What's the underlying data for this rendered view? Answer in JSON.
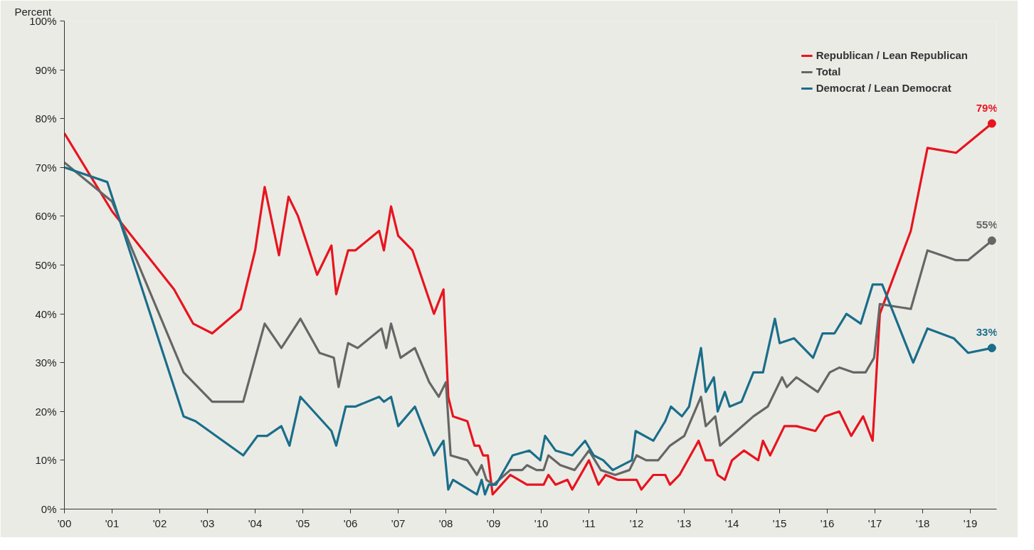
{
  "chart_data": {
    "type": "line",
    "ylabel": "Percent",
    "xlim": [
      2000,
      2019.55
    ],
    "ylim": [
      0,
      100
    ],
    "xticks": [
      {
        "value": 2000,
        "label": "'00"
      },
      {
        "value": 2001,
        "label": "'01"
      },
      {
        "value": 2002,
        "label": "'02"
      },
      {
        "value": 2003,
        "label": "'03"
      },
      {
        "value": 2004,
        "label": "'04"
      },
      {
        "value": 2005,
        "label": "'05"
      },
      {
        "value": 2006,
        "label": "'06"
      },
      {
        "value": 2007,
        "label": "'07"
      },
      {
        "value": 2008,
        "label": "'08"
      },
      {
        "value": 2009,
        "label": "'09"
      },
      {
        "value": 2010,
        "label": "'10"
      },
      {
        "value": 2011,
        "label": "'11"
      },
      {
        "value": 2012,
        "label": "'12"
      },
      {
        "value": 2013,
        "label": "'13"
      },
      {
        "value": 2014,
        "label": "'14"
      },
      {
        "value": 2015,
        "label": "'15"
      },
      {
        "value": 2016,
        "label": "'16"
      },
      {
        "value": 2017,
        "label": "'17"
      },
      {
        "value": 2018,
        "label": "'18"
      },
      {
        "value": 2019,
        "label": "'19"
      }
    ],
    "yticks": [
      {
        "value": 0,
        "label": "0%"
      },
      {
        "value": 10,
        "label": "10%"
      },
      {
        "value": 20,
        "label": "20%"
      },
      {
        "value": 30,
        "label": "30%"
      },
      {
        "value": 40,
        "label": "40%"
      },
      {
        "value": 50,
        "label": "50%"
      },
      {
        "value": 60,
        "label": "60%"
      },
      {
        "value": 70,
        "label": "70%"
      },
      {
        "value": 80,
        "label": "80%"
      },
      {
        "value": 90,
        "label": "90%"
      },
      {
        "value": 100,
        "label": "100%"
      }
    ],
    "grid": false,
    "legend": "top right",
    "line_style": "solid",
    "series": [
      {
        "name": "Republican / Lean Republican",
        "color": "#e8141e",
        "x": [
          2000.0,
          2001.0,
          2002.3,
          2002.7,
          2003.1,
          2003.7,
          2004.0,
          2004.2,
          2004.5,
          2004.7,
          2004.9,
          2005.3,
          2005.6,
          2005.7,
          2005.95,
          2006.1,
          2006.6,
          2006.7,
          2006.85,
          2007.0,
          2007.3,
          2007.75,
          2007.95,
          2008.05,
          2008.15,
          2008.45,
          2008.6,
          2008.7,
          2008.78,
          2008.88,
          2008.98,
          2009.35,
          2009.7,
          2010.05,
          2010.15,
          2010.3,
          2010.55,
          2010.65,
          2011.0,
          2011.2,
          2011.35,
          2011.6,
          2012.0,
          2012.1,
          2012.35,
          2012.6,
          2012.7,
          2012.9,
          2013.3,
          2013.45,
          2013.6,
          2013.7,
          2013.85,
          2014.0,
          2014.25,
          2014.55,
          2014.65,
          2014.8,
          2015.1,
          2015.35,
          2015.75,
          2015.95,
          2016.25,
          2016.5,
          2016.75,
          2016.95,
          2017.1,
          2017.75,
          2018.1,
          2018.7,
          2019.45
        ],
        "values": [
          77,
          61,
          45,
          38,
          36,
          41,
          53,
          66,
          52,
          64,
          60,
          48,
          54,
          44,
          53,
          53,
          57,
          53,
          62,
          56,
          53,
          40,
          45,
          23,
          19,
          18,
          13,
          13,
          11,
          11,
          3,
          7,
          5,
          5,
          7,
          5,
          6,
          4,
          10,
          5,
          7,
          6,
          6,
          4,
          7,
          7,
          5,
          7,
          14,
          10,
          10,
          7,
          6,
          10,
          12,
          10,
          14,
          11,
          17,
          17,
          16,
          19,
          20,
          15,
          19,
          14,
          40,
          57,
          74,
          73,
          79
        ],
        "value_labels": [
          null,
          null,
          null,
          null,
          null,
          null,
          null,
          null,
          null,
          null,
          null,
          null,
          null,
          null,
          null,
          null,
          null,
          null,
          null,
          null,
          null,
          null,
          null,
          null,
          null,
          null,
          null,
          null,
          null,
          null,
          null,
          null,
          null,
          null,
          null,
          null,
          null,
          null,
          null,
          null,
          null,
          null,
          null,
          null,
          null,
          null,
          null,
          null,
          null,
          null,
          null,
          null,
          null,
          null,
          null,
          null,
          null,
          null,
          null,
          null,
          null,
          null,
          null,
          null,
          null,
          null,
          null,
          null,
          null,
          null,
          "79%"
        ]
      },
      {
        "name": "Total",
        "color": "#666666",
        "x": [
          2000.0,
          2001.0,
          2002.5,
          2003.1,
          2003.75,
          2004.2,
          2004.55,
          2004.95,
          2005.35,
          2005.65,
          2005.75,
          2005.95,
          2006.15,
          2006.65,
          2006.75,
          2006.85,
          2007.05,
          2007.35,
          2007.65,
          2007.85,
          2008.0,
          2008.1,
          2008.45,
          2008.65,
          2008.75,
          2008.85,
          2009.0,
          2009.35,
          2009.6,
          2009.7,
          2009.9,
          2010.05,
          2010.15,
          2010.4,
          2010.7,
          2011.0,
          2011.25,
          2011.55,
          2011.85,
          2012.0,
          2012.2,
          2012.45,
          2012.7,
          2013.0,
          2013.35,
          2013.45,
          2013.65,
          2013.75,
          2014.1,
          2014.45,
          2014.75,
          2015.05,
          2015.15,
          2015.35,
          2015.8,
          2016.05,
          2016.25,
          2016.55,
          2016.8,
          2016.98,
          2017.1,
          2017.75,
          2018.1,
          2018.7,
          2018.95,
          2019.45
        ],
        "values": [
          71,
          63,
          28,
          22,
          22,
          38,
          33,
          39,
          32,
          31,
          25,
          34,
          33,
          37,
          33,
          38,
          31,
          33,
          26,
          23,
          26,
          11,
          10,
          7,
          9,
          6,
          5,
          8,
          8,
          9,
          8,
          8,
          11,
          9,
          8,
          12,
          8,
          7,
          8,
          11,
          10,
          10,
          13,
          15,
          23,
          17,
          19,
          13,
          16,
          19,
          21,
          27,
          25,
          27,
          24,
          28,
          29,
          28,
          28,
          31,
          42,
          41,
          53,
          51,
          51,
          55
        ],
        "value_labels": [
          null,
          null,
          null,
          null,
          null,
          null,
          null,
          null,
          null,
          null,
          null,
          null,
          null,
          null,
          null,
          null,
          null,
          null,
          null,
          null,
          null,
          null,
          null,
          null,
          null,
          null,
          null,
          null,
          null,
          null,
          null,
          null,
          null,
          null,
          null,
          null,
          null,
          null,
          null,
          null,
          null,
          null,
          null,
          null,
          null,
          null,
          null,
          null,
          null,
          null,
          null,
          null,
          null,
          null,
          null,
          null,
          null,
          null,
          null,
          null,
          null,
          null,
          null,
          null,
          null,
          "55%"
        ]
      },
      {
        "name": "Democrat / Lean Democrat",
        "color": "#1a6e8a",
        "x": [
          2000.0,
          2000.9,
          2002.5,
          2002.75,
          2003.75,
          2004.05,
          2004.25,
          2004.55,
          2004.72,
          2004.95,
          2005.6,
          2005.7,
          2005.9,
          2006.1,
          2006.6,
          2006.7,
          2006.85,
          2007.0,
          2007.35,
          2007.75,
          2007.95,
          2008.05,
          2008.15,
          2008.65,
          2008.75,
          2008.82,
          2008.9,
          2009.05,
          2009.4,
          2009.75,
          2009.98,
          2010.08,
          2010.3,
          2010.65,
          2010.92,
          2011.1,
          2011.3,
          2011.5,
          2011.9,
          2011.98,
          2012.35,
          2012.6,
          2012.72,
          2012.95,
          2013.1,
          2013.35,
          2013.45,
          2013.62,
          2013.7,
          2013.85,
          2013.95,
          2014.2,
          2014.45,
          2014.65,
          2014.9,
          2015.0,
          2015.3,
          2015.7,
          2015.9,
          2016.15,
          2016.4,
          2016.7,
          2016.95,
          2017.15,
          2017.8,
          2018.1,
          2018.65,
          2018.95,
          2019.45
        ],
        "values": [
          70,
          67,
          19,
          18,
          11,
          15,
          15,
          17,
          13,
          23,
          16,
          13,
          21,
          21,
          23,
          22,
          23,
          17,
          21,
          11,
          14,
          4,
          6,
          3,
          6,
          3,
          5,
          5,
          11,
          12,
          10,
          15,
          12,
          11,
          14,
          11,
          10,
          8,
          10,
          16,
          14,
          18,
          21,
          19,
          21,
          33,
          24,
          27,
          20,
          24,
          21,
          22,
          28,
          28,
          39,
          34,
          35,
          31,
          36,
          36,
          40,
          38,
          46,
          46,
          30,
          37,
          35,
          32,
          33
        ],
        "value_labels": [
          null,
          null,
          null,
          null,
          null,
          null,
          null,
          null,
          null,
          null,
          null,
          null,
          null,
          null,
          null,
          null,
          null,
          null,
          null,
          null,
          null,
          null,
          null,
          null,
          null,
          null,
          null,
          null,
          null,
          null,
          null,
          null,
          null,
          null,
          null,
          null,
          null,
          null,
          null,
          null,
          null,
          null,
          null,
          null,
          null,
          null,
          null,
          null,
          null,
          null,
          null,
          null,
          null,
          null,
          null,
          null,
          null,
          null,
          null,
          null,
          null,
          null,
          null,
          null,
          null,
          null,
          null,
          null,
          "33%"
        ]
      }
    ]
  }
}
